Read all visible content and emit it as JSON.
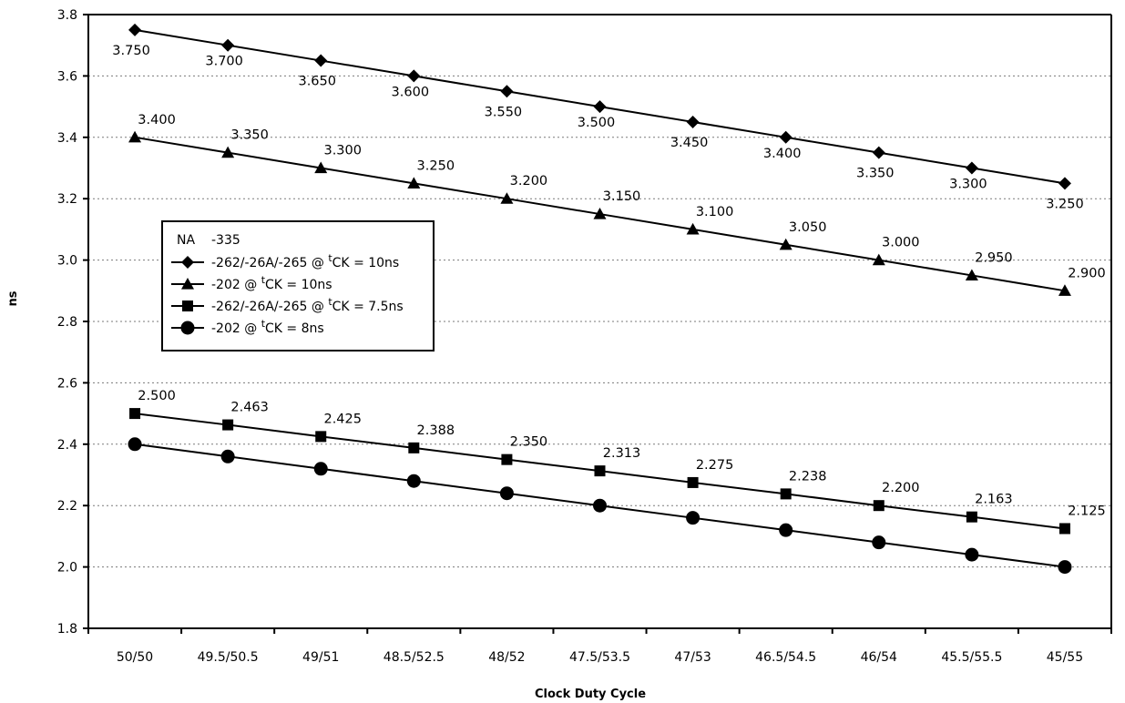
{
  "chart_data": {
    "type": "line",
    "title": "",
    "xlabel": "Clock Duty Cycle",
    "ylabel": "ns",
    "categories": [
      "50/50",
      "49.5/50.5",
      "49/51",
      "48.5/52.5",
      "48/52",
      "47.5/53.5",
      "47/53",
      "46.5/54.5",
      "46/54",
      "45.5/55.5",
      "45/55"
    ],
    "ylim": [
      1.8,
      3.8
    ],
    "yticks": [
      "1.8",
      "2.0",
      "2.2",
      "2.4",
      "2.6",
      "2.8",
      "3.0",
      "3.2",
      "3.4",
      "3.6",
      "3.8"
    ],
    "grid": "dotted horizontal",
    "legend": {
      "header_left": "NA",
      "header_right": "-335",
      "placement": "middle-left"
    },
    "series": [
      {
        "name_prefix": "-262/-26A/-265 @ ",
        "name_sup": "t",
        "name_suffix": "CK = 10ns",
        "marker": "diamond",
        "values": [
          3.75,
          3.7,
          3.65,
          3.6,
          3.55,
          3.5,
          3.45,
          3.4,
          3.35,
          3.3,
          3.25
        ],
        "labels": [
          "3.750",
          "3.700",
          "3.650",
          "3.600",
          "3.550",
          "3.500",
          "3.450",
          "3.400",
          "3.350",
          "3.300",
          "3.250"
        ]
      },
      {
        "name_prefix": "-202 @ ",
        "name_sup": "t",
        "name_suffix": "CK = 10ns",
        "marker": "triangle",
        "values": [
          3.4,
          3.35,
          3.3,
          3.25,
          3.2,
          3.15,
          3.1,
          3.05,
          3.0,
          2.95,
          2.9
        ],
        "labels": [
          "3.400",
          "3.350",
          "3.300",
          "3.250",
          "3.200",
          "3.150",
          "3.100",
          "3.050",
          "3.000",
          "2.950",
          "2.900"
        ]
      },
      {
        "name_prefix": "-262/-26A/-265 @ ",
        "name_sup": "t",
        "name_suffix": "CK = 7.5ns",
        "marker": "square",
        "values": [
          2.5,
          2.463,
          2.425,
          2.388,
          2.35,
          2.313,
          2.275,
          2.238,
          2.2,
          2.163,
          2.125
        ],
        "labels": [
          "2.500",
          "2.463",
          "2.425",
          "2.388",
          "2.350",
          "2.313",
          "2.275",
          "2.238",
          "2.200",
          "2.163",
          "2.125"
        ]
      },
      {
        "name_prefix": "-202 @ ",
        "name_sup": "t",
        "name_suffix": "CK = 8ns",
        "marker": "circle",
        "values": [
          2.4,
          2.36,
          2.32,
          2.28,
          2.24,
          2.2,
          2.16,
          2.12,
          2.08,
          2.04,
          2.0
        ],
        "labels": []
      }
    ]
  }
}
